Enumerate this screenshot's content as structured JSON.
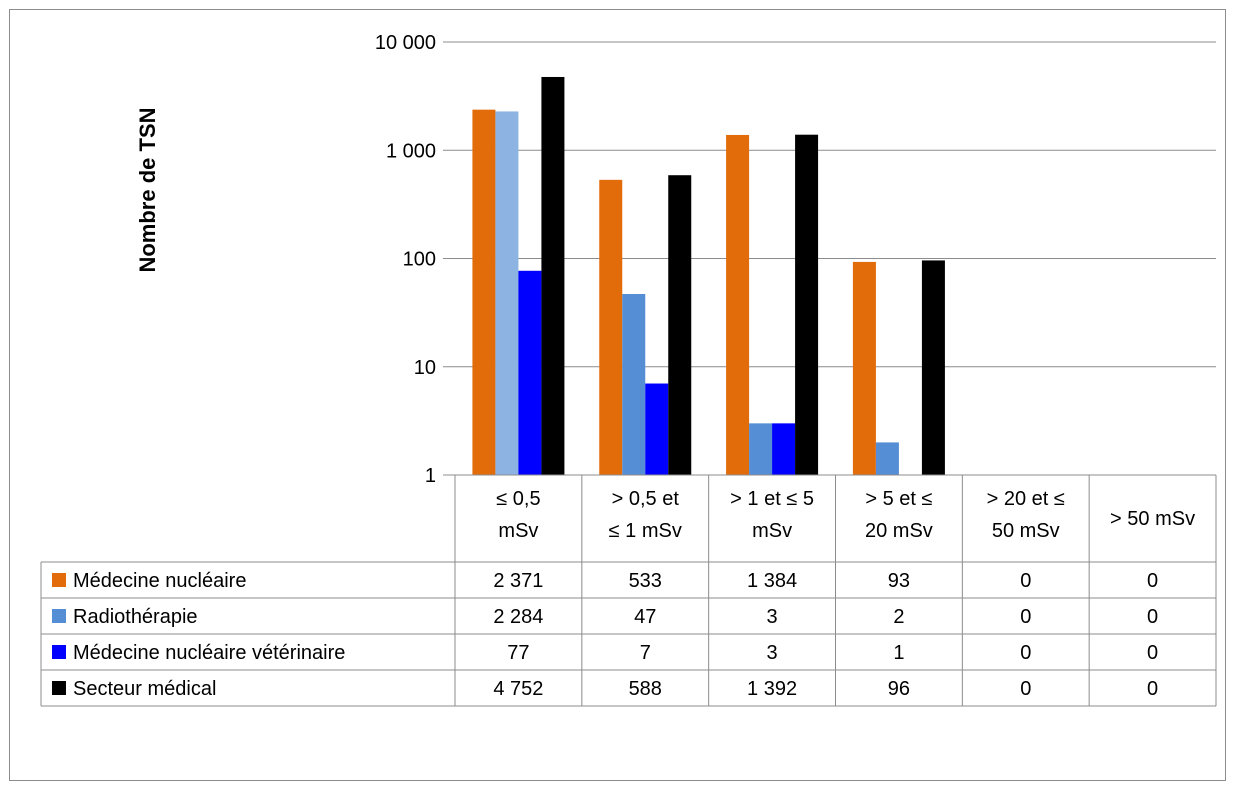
{
  "chart_data": {
    "type": "bar",
    "scale": "log",
    "ylabel": "Nombre de TSN",
    "xlabel": "",
    "title": "",
    "ylim": [
      1,
      10000
    ],
    "y_ticks": [
      {
        "value": 1,
        "label": "1"
      },
      {
        "value": 10,
        "label": "10"
      },
      {
        "value": 100,
        "label": "100"
      },
      {
        "value": 1000,
        "label": "1 000"
      },
      {
        "value": 10000,
        "label": "10 000"
      }
    ],
    "categories": [
      [
        "≤ 0,5",
        "mSv"
      ],
      [
        "> 0,5 et",
        "≤ 1 mSv"
      ],
      [
        "> 1 et ≤ 5",
        "mSv"
      ],
      [
        "> 5 et ≤",
        "20 mSv"
      ],
      [
        "> 20 et ≤",
        "50 mSv"
      ],
      [
        "> 50 mSv"
      ]
    ],
    "series": [
      {
        "name": "Médecine nucléaire",
        "color": "#E36C0A",
        "values": [
          2371,
          533,
          1384,
          93,
          0,
          0
        ],
        "labels": [
          "2 371",
          "533",
          "1 384",
          "93",
          "0",
          "0"
        ]
      },
      {
        "name": "Radiothérapie",
        "color": "#558ED5",
        "bar_colors": [
          "#8DB3E2",
          "#558ED5",
          "#558ED5",
          "#558ED5",
          "#558ED5",
          "#558ED5"
        ],
        "values": [
          2284,
          47,
          3,
          2,
          0,
          0
        ],
        "labels": [
          "2 284",
          "47",
          "3",
          "2",
          "0",
          "0"
        ]
      },
      {
        "name": "Médecine nucléaire vétérinaire",
        "color": "#0000FF",
        "values": [
          77,
          7,
          3,
          1,
          0,
          0
        ],
        "labels": [
          "77",
          "7",
          "3",
          "1",
          "0",
          "0"
        ]
      },
      {
        "name": "Secteur médical",
        "color": "#000000",
        "values": [
          4752,
          588,
          1392,
          96,
          0,
          0
        ],
        "labels": [
          "4 752",
          "588",
          "1 392",
          "96",
          "0",
          "0"
        ]
      }
    ],
    "grid": true,
    "legend": "data-table"
  }
}
